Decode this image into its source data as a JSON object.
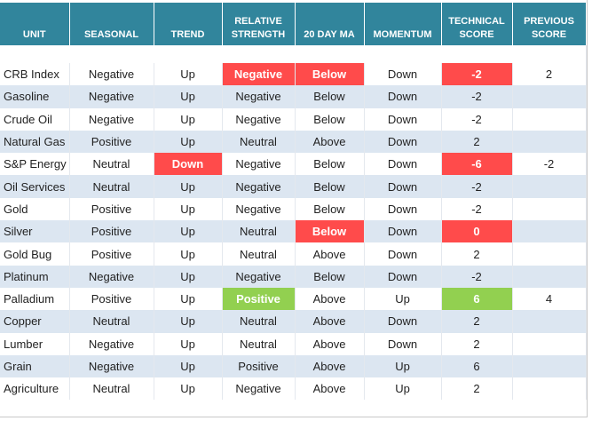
{
  "table": {
    "header": [
      "UNIT",
      "SEASONAL",
      "TREND",
      "RELATIVE STRENGTH",
      "20 DAY MA",
      "MOMENTUM",
      "TECHNICAL SCORE",
      "PREVIOUS SCORE"
    ],
    "header_color": "#31859c",
    "stripe_color": "#dce6f1",
    "rows": [
      [
        "CRB Index",
        "Negative",
        "Up",
        {
          "text": "Negative",
          "color": "#ff4b4b"
        },
        {
          "text": "Below",
          "color": "#ff4b4b"
        },
        "Down",
        {
          "text": -2,
          "color": "#ff4b4b"
        },
        2
      ],
      [
        "Gasoline",
        "Negative",
        "Up",
        "Negative",
        "Below",
        "Down",
        -2,
        null
      ],
      [
        "Crude Oil",
        "Negative",
        "Up",
        "Negative",
        "Below",
        "Down",
        -2,
        null
      ],
      [
        "Natural Gas",
        "Positive",
        "Up",
        "Neutral",
        "Above",
        "Down",
        2,
        null
      ],
      [
        "S&P Energy",
        "Neutral",
        {
          "text": "Down",
          "color": "#ff4b4b"
        },
        "Negative",
        "Below",
        "Down",
        {
          "text": -6,
          "color": "#ff4b4b"
        },
        -2
      ],
      [
        "Oil Services",
        "Neutral",
        "Up",
        "Negative",
        "Below",
        "Down",
        -2,
        null
      ],
      [
        "Gold",
        "Positive",
        "Up",
        "Negative",
        "Below",
        "Down",
        -2,
        null
      ],
      [
        "Silver",
        "Positive",
        "Up",
        "Neutral",
        {
          "text": "Below",
          "color": "#ff4b4b"
        },
        "Down",
        {
          "text": 0,
          "color": "#ff4b4b"
        },
        null
      ],
      [
        "Gold Bug",
        "Positive",
        "Up",
        "Neutral",
        "Above",
        "Down",
        2,
        null
      ],
      [
        "Platinum",
        "Negative",
        "Up",
        "Negative",
        "Below",
        "Down",
        -2,
        null
      ],
      [
        "Palladium",
        "Positive",
        "Up",
        {
          "text": "Positive",
          "color": "#92d050"
        },
        "Above",
        "Up",
        {
          "text": 6,
          "color": "#92d050"
        },
        4
      ],
      [
        "Copper",
        "Neutral",
        "Up",
        "Neutral",
        "Above",
        "Down",
        2,
        null
      ],
      [
        "Lumber",
        "Negative",
        "Up",
        "Neutral",
        "Above",
        "Down",
        2,
        null
      ],
      [
        "Grain",
        "Negative",
        "Up",
        "Positive",
        "Above",
        "Up",
        6,
        null
      ],
      [
        "Agriculture",
        "Neutral",
        "Up",
        "Negative",
        "Above",
        "Up",
        2,
        null
      ]
    ]
  }
}
